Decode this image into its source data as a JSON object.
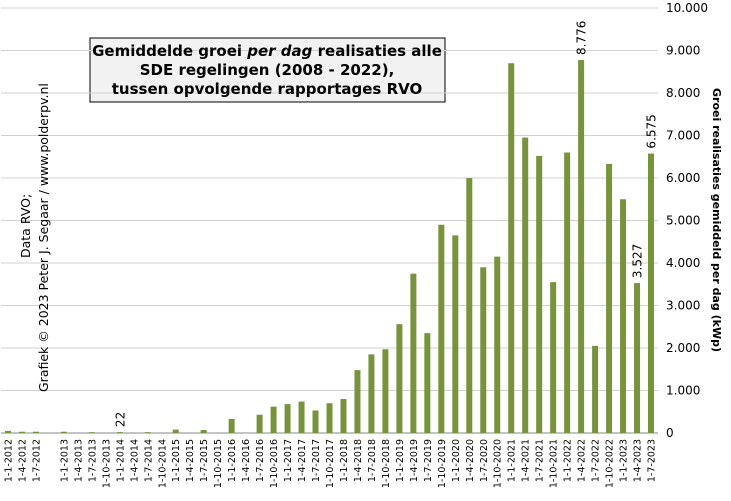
{
  "chart_data": {
    "type": "bar",
    "title_lines": [
      [
        "Gemiddelde groei ",
        "per dag",
        " realisaties alle"
      ],
      "SDE regelingen (2008 - 2022),",
      "tussen opvolgende rapportages RVO"
    ],
    "credit_lines": [
      "Data RVO;",
      "Grafiek © 2023 Peter J. Segaar / www.polderpv.nl"
    ],
    "y_label": "Groei realisaties gemiddeld per dag (kWp)",
    "categories": [
      "1-1-2012",
      "1-4-2012",
      "1-7-2012",
      null,
      "1-1-2013",
      "1-4-2013",
      "1-7-2013",
      "1-10-2013",
      "1-1-2014",
      "1-4-2014",
      "1-7-2014",
      "1-10-2014",
      "1-1-2015",
      "1-4-2015",
      "1-7-2015",
      "1-10-2015",
      "1-1-2016",
      "1-4-2016",
      "1-7-2016",
      "1-10-2016",
      "1-1-2017",
      "1-4-2017",
      "1-7-2017",
      "1-10-2017",
      "1-1-2018",
      "1-4-2018",
      "1-7-2018",
      "1-10-2018",
      "1-1-2019",
      "1-4-2019",
      "1-7-2019",
      "1-10-2019",
      "1-1-2020",
      "1-4-2020",
      "1-7-2020",
      "1-10-2020",
      "1-1-2021",
      "1-4-2021",
      "1-7-2021",
      "1-10-2021",
      "1-1-2022",
      "1-4-2022",
      "1-7-2022",
      "1-10-2022",
      "1-1-2023",
      "1-4-2023",
      "1-7-2023"
    ],
    "values": [
      50,
      30,
      30,
      0,
      30,
      0,
      20,
      0,
      22,
      0,
      20,
      0,
      80,
      0,
      70,
      0,
      330,
      0,
      430,
      620,
      680,
      740,
      530,
      700,
      800,
      1480,
      1850,
      1970,
      2560,
      3750,
      2350,
      4900,
      4650,
      6000,
      3900,
      4150,
      8700,
      6950,
      6520,
      3550,
      6600,
      8776,
      2050,
      6330,
      5500,
      3527,
      6575
    ],
    "value_labels": [
      null,
      null,
      null,
      null,
      null,
      null,
      null,
      null,
      "22",
      null,
      null,
      null,
      null,
      null,
      null,
      null,
      null,
      null,
      null,
      null,
      null,
      null,
      null,
      null,
      null,
      null,
      null,
      null,
      null,
      null,
      null,
      null,
      null,
      null,
      null,
      null,
      null,
      null,
      null,
      null,
      null,
      "8.776",
      null,
      null,
      null,
      "3.527",
      "6.575"
    ],
    "value_label_colors": [
      null,
      null,
      null,
      null,
      null,
      null,
      null,
      null,
      "#3333cc",
      null,
      null,
      null,
      null,
      null,
      null,
      null,
      null,
      null,
      null,
      null,
      null,
      null,
      null,
      null,
      null,
      null,
      null,
      null,
      null,
      null,
      null,
      null,
      null,
      null,
      null,
      null,
      null,
      null,
      null,
      null,
      null,
      "#dd0000",
      null,
      null,
      null,
      "#000000",
      "#000000"
    ],
    "color": "#77933c",
    "ylim": [
      0,
      10000
    ],
    "yticks": [
      0,
      {
        "value": 1000,
        "label": "1.000"
      },
      {
        "value": 2000,
        "label": "2.000"
      },
      {
        "value": 3000,
        "label": "3.000"
      },
      {
        "value": 4000,
        "label": "4.000"
      },
      {
        "value": 5000,
        "label": "5.000"
      },
      {
        "value": 6000,
        "label": "6.000"
      },
      {
        "value": 7000,
        "label": "7.000"
      },
      {
        "value": 8000,
        "label": "8.000"
      },
      {
        "value": 9000,
        "label": "9.000"
      },
      {
        "value": 10000,
        "label": "10.000"
      }
    ],
    "grid": true
  }
}
